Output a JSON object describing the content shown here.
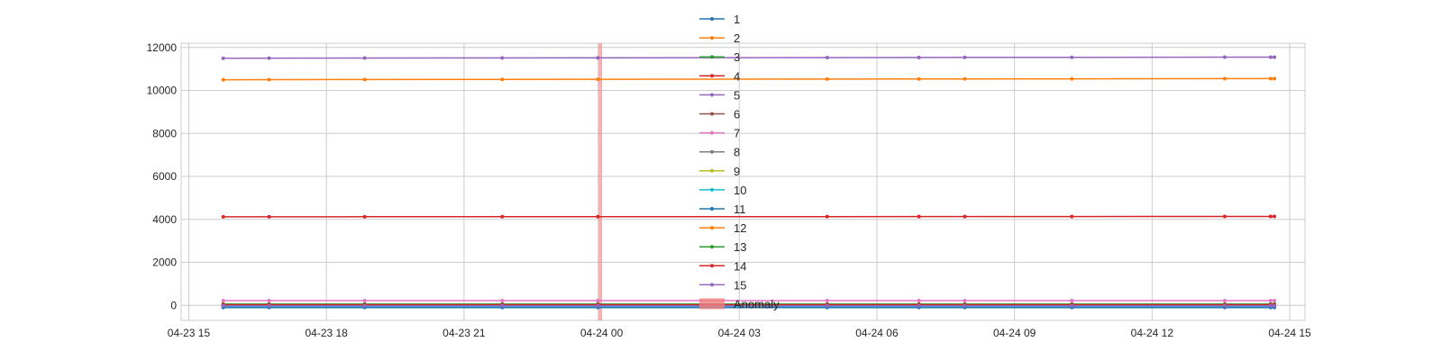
{
  "chart_data": {
    "type": "line",
    "title": "",
    "xlabel": "",
    "ylabel": "",
    "grid": true,
    "legend_placement": "top-center",
    "xlim": [
      "2026-04-23 14:50",
      "2026-04-24 15:20"
    ],
    "ylim": [
      -700,
      12200
    ],
    "x_ticks": [
      "04-23 15",
      "04-23 18",
      "04-23 21",
      "04-24 00",
      "04-24 03",
      "04-24 06",
      "04-24 09",
      "04-24 12",
      "04-24 15"
    ],
    "x_tick_values": [
      "2026-04-23 15:00",
      "2026-04-23 18:00",
      "2026-04-23 21:00",
      "2026-04-24 00:00",
      "2026-04-24 03:00",
      "2026-04-24 06:00",
      "2026-04-24 09:00",
      "2026-04-24 12:00",
      "2026-04-24 15:00"
    ],
    "y_ticks": [
      0,
      2000,
      4000,
      6000,
      8000,
      10000,
      12000
    ],
    "x": [
      "2026-04-23 15:45",
      "2026-04-23 16:45",
      "2026-04-23 18:50",
      "2026-04-23 21:50",
      "2026-04-23 23:55",
      "2026-04-24 04:55",
      "2026-04-24 06:55",
      "2026-04-24 07:55",
      "2026-04-24 10:15",
      "2026-04-24 13:35",
      "2026-04-24 14:35",
      "2026-04-24 14:40"
    ],
    "series": [
      {
        "name": "1",
        "color": "#1f77b4",
        "values": [
          -60,
          -60,
          -60,
          -60,
          -60,
          -60,
          -60,
          -60,
          -60,
          -60,
          -60,
          -60
        ]
      },
      {
        "name": "2",
        "color": "#ff7f0e",
        "values": [
          10500,
          10505,
          10510,
          10515,
          10520,
          10530,
          10535,
          10538,
          10542,
          10550,
          10552,
          10552
        ]
      },
      {
        "name": "3",
        "color": "#2ca02c",
        "values": [
          60,
          60,
          60,
          60,
          60,
          60,
          60,
          60,
          60,
          60,
          60,
          60
        ]
      },
      {
        "name": "4",
        "color": "#d62728",
        "values": [
          4120,
          4122,
          4124,
          4126,
          4128,
          4130,
          4132,
          4133,
          4134,
          4136,
          4137,
          4137
        ]
      },
      {
        "name": "5",
        "color": "#9467bd",
        "values": [
          11500,
          11505,
          11510,
          11515,
          11520,
          11530,
          11535,
          11538,
          11542,
          11550,
          11552,
          11552
        ]
      },
      {
        "name": "6",
        "color": "#8c564b",
        "values": [
          40,
          40,
          40,
          40,
          40,
          40,
          40,
          40,
          40,
          40,
          40,
          40
        ]
      },
      {
        "name": "7",
        "color": "#e377c2",
        "values": [
          220,
          220,
          220,
          220,
          220,
          220,
          220,
          220,
          220,
          220,
          220,
          220
        ]
      },
      {
        "name": "8",
        "color": "#7f7f7f",
        "values": [
          10,
          10,
          10,
          10,
          10,
          10,
          10,
          10,
          10,
          10,
          10,
          10
        ]
      },
      {
        "name": "9",
        "color": "#bcbd22",
        "values": [
          20,
          20,
          20,
          20,
          20,
          20,
          20,
          20,
          20,
          20,
          20,
          20
        ]
      },
      {
        "name": "10",
        "color": "#17becf",
        "values": [
          -40,
          -40,
          -40,
          -40,
          -40,
          -40,
          -40,
          -40,
          -40,
          -40,
          -40,
          -40
        ]
      },
      {
        "name": "11",
        "color": "#1f77b4",
        "values": [
          -100,
          -100,
          -100,
          -100,
          -100,
          -100,
          -100,
          -100,
          -100,
          -100,
          -100,
          -100
        ]
      },
      {
        "name": "12",
        "color": "#ff7f0e",
        "values": [
          0,
          0,
          0,
          0,
          0,
          0,
          0,
          0,
          0,
          0,
          0,
          0
        ]
      },
      {
        "name": "13",
        "color": "#2ca02c",
        "values": [
          50,
          50,
          50,
          50,
          50,
          50,
          50,
          50,
          50,
          50,
          50,
          50
        ]
      },
      {
        "name": "14",
        "color": "#d62728",
        "values": [
          30,
          30,
          30,
          30,
          30,
          30,
          30,
          30,
          30,
          30,
          30,
          30
        ]
      },
      {
        "name": "15",
        "color": "#9467bd",
        "values": [
          -20,
          -20,
          -20,
          -20,
          -20,
          -20,
          -20,
          -20,
          -20,
          -20,
          -20,
          -20
        ]
      }
    ],
    "anomalies": [
      {
        "label": "Anomaly",
        "start": "2026-04-23 23:55",
        "end": "2026-04-24 00:00",
        "color": "#f08080"
      }
    ],
    "anomaly_legend_label": "Anomaly"
  }
}
